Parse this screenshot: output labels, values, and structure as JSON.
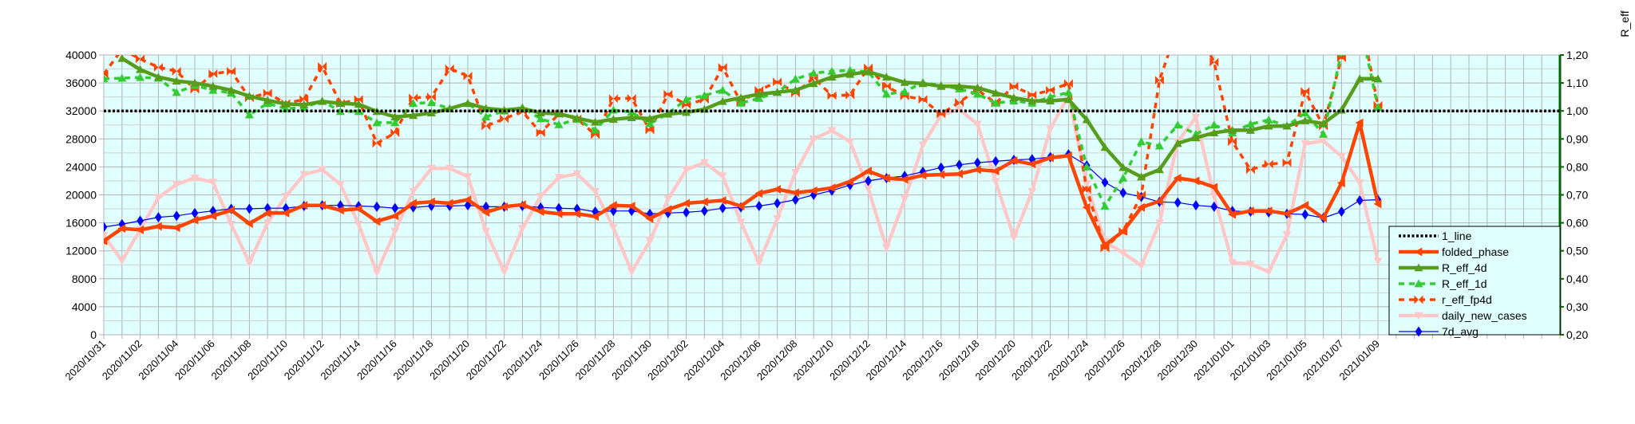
{
  "chart_data": {
    "type": "line",
    "title": "",
    "y_right_label": "R_eff",
    "ylim_left": [
      0,
      40000
    ],
    "ylim_right": [
      0.2,
      1.2
    ],
    "left_ticks": [
      "0",
      "4000",
      "8000",
      "12000",
      "16000",
      "20000",
      "24000",
      "28000",
      "32000",
      "36000",
      "40000"
    ],
    "right_ticks": [
      "0,20",
      "0,30",
      "0,40",
      "0,50",
      "0,60",
      "0,70",
      "0,80",
      "0,90",
      "1,00",
      "1,10",
      "1,20"
    ],
    "grid": true,
    "legend_position": "bottom-right",
    "x_labels": [
      "2020/10/31",
      "2020/11/02",
      "2020/11/04",
      "2020/11/06",
      "2020/11/08",
      "2020/11/10",
      "2020/11/12",
      "2020/11/14",
      "2020/11/16",
      "2020/11/18",
      "2020/11/20",
      "2020/11/22",
      "2020/11/24",
      "2020/11/26",
      "2020/11/28",
      "2020/11/30",
      "2020/12/02",
      "2020/12/04",
      "2020/12/06",
      "2020/12/08",
      "2020/12/10",
      "2020/12/12",
      "2020/12/14",
      "2020/12/16",
      "2020/12/18",
      "2020/12/20",
      "2020/12/22",
      "2020/12/24",
      "2020/12/26",
      "2020/12/28",
      "2020/12/30",
      "2021/01/01",
      "2021/01/03",
      "2021/01/05",
      "2021/01/07",
      "2021/01/09"
    ],
    "x_days_total": 71,
    "series": [
      {
        "name": "1_line",
        "axis": "right",
        "color": "#000000",
        "style": "dotted",
        "marker": "none",
        "constant": 1.0
      },
      {
        "name": "folded_phase",
        "axis": "left",
        "color": "#ff4500",
        "style": "solid",
        "marker": "tri-left",
        "values": [
          13400,
          15200,
          15000,
          15500,
          15300,
          16400,
          17000,
          17800,
          15900,
          17400,
          17400,
          18500,
          18500,
          17800,
          18000,
          16200,
          17000,
          18800,
          19000,
          18800,
          19300,
          17500,
          18300,
          18600,
          17600,
          17300,
          17300,
          16900,
          18500,
          18400,
          16600,
          17900,
          18800,
          19000,
          19200,
          18400,
          20200,
          20800,
          20300,
          20600,
          21000,
          21900,
          23400,
          22400,
          22200,
          22800,
          22900,
          23000,
          23600,
          23400,
          24900,
          24400,
          25300,
          25600,
          18200,
          12800,
          14800,
          18200,
          19100,
          22400,
          22000,
          21100,
          17200,
          17700,
          17700,
          17300,
          18500,
          16700,
          21700,
          30300,
          18700
        ]
      },
      {
        "name": "R_eff_4d",
        "axis": "right",
        "color": "#579d1c",
        "style": "solid",
        "marker": "tri-up",
        "values": [
          null,
          1.188,
          1.148,
          1.121,
          1.107,
          1.1,
          1.088,
          1.074,
          1.053,
          1.038,
          1.025,
          1.022,
          1.034,
          1.027,
          1.024,
          0.998,
          0.979,
          0.984,
          0.993,
          1.008,
          1.027,
          1.009,
          1.003,
          1.009,
          0.993,
          0.99,
          0.974,
          0.96,
          0.97,
          0.976,
          0.973,
          0.989,
          0.995,
          1.006,
          1.034,
          1.047,
          1.06,
          1.067,
          1.074,
          1.098,
          1.121,
          1.131,
          1.14,
          1.121,
          1.102,
          1.098,
          1.088,
          1.088,
          1.083,
          1.064,
          1.047,
          1.036,
          1.036,
          1.041,
          0.969,
          0.87,
          0.798,
          0.764,
          0.79,
          0.884,
          0.904,
          0.922,
          0.931,
          0.931,
          0.946,
          0.946,
          0.965,
          0.955,
          1.003,
          1.115,
          1.115
        ]
      },
      {
        "name": "R_eff_1d",
        "axis": "right",
        "color": "#33cc33",
        "style": "dashed",
        "marker": "tri-up",
        "values": [
          1.115,
          1.117,
          1.12,
          1.117,
          1.066,
          1.091,
          1.074,
          1.064,
          0.986,
          1.027,
          1.008,
          1.012,
          1.036,
          0.998,
          0.998,
          0.958,
          0.958,
          1.027,
          1.03,
          1.008,
          1.027,
          0.979,
          1.0,
          1.012,
          0.972,
          0.951,
          0.97,
          0.932,
          1.003,
          0.996,
          0.955,
          0.99,
          1.041,
          1.055,
          1.074,
          1.028,
          1.045,
          1.066,
          1.114,
          1.135,
          1.142,
          1.145,
          1.14,
          1.06,
          1.069,
          1.102,
          1.091,
          1.079,
          1.06,
          1.028,
          1.036,
          1.028,
          1.05,
          1.066,
          0.8,
          0.66,
          0.76,
          0.89,
          0.875,
          0.95,
          0.917,
          0.95,
          0.922,
          0.953,
          0.968,
          0.946,
          0.993,
          0.917,
          1.21,
          1.32,
          1.012
        ]
      },
      {
        "name": "r_eff_fp4d",
        "axis": "right",
        "color": "#ff4500",
        "style": "dashed",
        "marker": "bowtie",
        "values": [
          1.131,
          1.22,
          1.186,
          1.156,
          1.142,
          1.077,
          1.133,
          1.142,
          1.047,
          1.064,
          1.027,
          1.041,
          1.159,
          1.027,
          1.041,
          0.884,
          0.922,
          1.047,
          1.05,
          1.151,
          1.125,
          0.946,
          0.972,
          0.998,
          0.922,
          0.989,
          0.972,
          0.915,
          1.044,
          1.045,
          0.932,
          1.06,
          1.022,
          1.041,
          1.156,
          1.031,
          1.074,
          1.104,
          1.064,
          1.118,
          1.055,
          1.057,
          1.154,
          1.088,
          1.053,
          1.041,
          0.989,
          1.031,
          1.076,
          1.028,
          1.088,
          1.057,
          1.074,
          1.098,
          0.72,
          0.51,
          0.57,
          0.7,
          1.11,
          1.3,
          1.3,
          1.174,
          0.89,
          0.79,
          0.81,
          0.815,
          1.07,
          0.946,
          1.19,
          1.35,
          1.02
        ]
      },
      {
        "name": "daily_new_cases",
        "axis": "left",
        "color": "#ffc8c8",
        "style": "solid",
        "marker": "tri-down",
        "values": [
          14200,
          10600,
          15000,
          19600,
          21500,
          22400,
          21800,
          15800,
          10300,
          16000,
          19800,
          22900,
          23600,
          21500,
          15800,
          8900,
          14800,
          20500,
          23800,
          23800,
          22600,
          14800,
          9000,
          15200,
          19800,
          22500,
          23000,
          20500,
          15300,
          9000,
          13400,
          19400,
          23600,
          24600,
          22700,
          16100,
          10300,
          16600,
          23200,
          28000,
          29200,
          27600,
          20900,
          12400,
          19400,
          27100,
          31400,
          32200,
          30100,
          21900,
          13900,
          20500,
          29400,
          34200,
          21600,
          13300,
          11700,
          9900,
          16000,
          27600,
          31100,
          19800,
          10300,
          10100,
          9000,
          14300,
          27300,
          27700,
          25500,
          21700,
          10500
        ]
      },
      {
        "name": "7d_avg",
        "axis": "left",
        "color": "#0000ff",
        "style": "thin",
        "marker": "diamond",
        "values": [
          15400,
          15800,
          16300,
          16800,
          17000,
          17400,
          17700,
          18000,
          18000,
          18100,
          18100,
          18400,
          18500,
          18500,
          18400,
          18300,
          18100,
          18200,
          18400,
          18400,
          18500,
          18300,
          18300,
          18400,
          18200,
          18100,
          18000,
          17600,
          17700,
          17700,
          17300,
          17400,
          17500,
          17700,
          18100,
          18200,
          18400,
          18800,
          19300,
          20000,
          20600,
          21400,
          22000,
          22400,
          22700,
          23300,
          23900,
          24300,
          24600,
          24800,
          25000,
          25100,
          25400,
          25800,
          24200,
          21800,
          20300,
          19700,
          19000,
          18900,
          18500,
          18300,
          17700,
          17600,
          17500,
          17300,
          17200,
          16700,
          17600,
          19200,
          19300
        ]
      }
    ]
  }
}
